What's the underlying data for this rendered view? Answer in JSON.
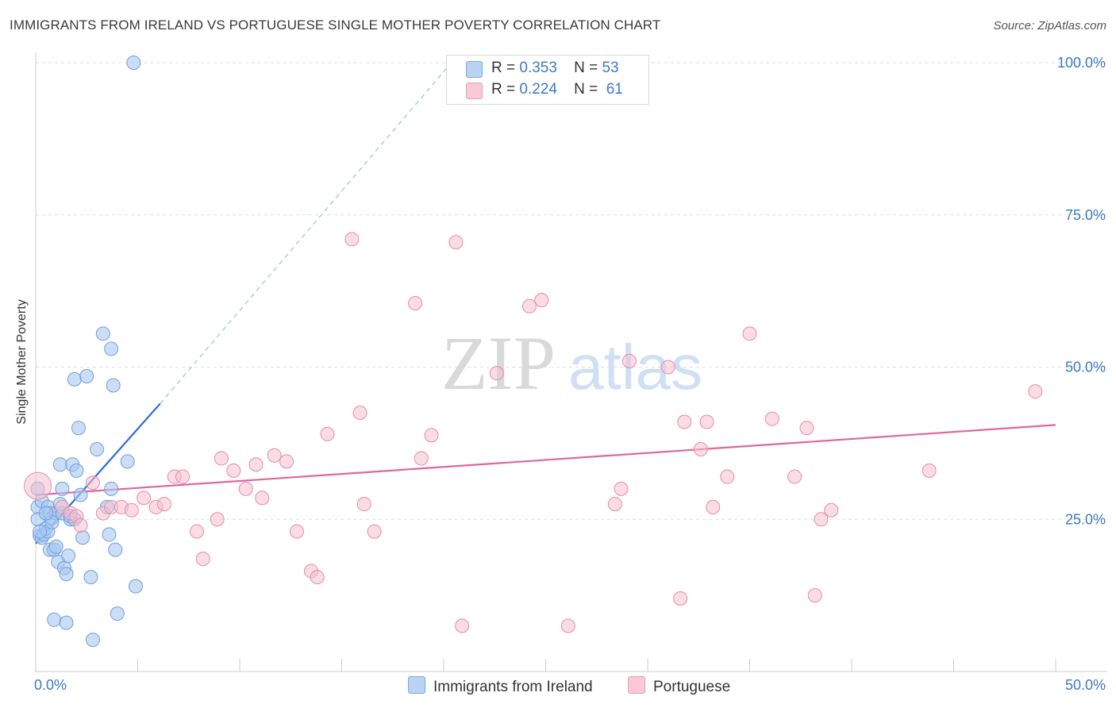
{
  "header": {
    "title": "IMMIGRANTS FROM IRELAND VS PORTUGUESE SINGLE MOTHER POVERTY CORRELATION CHART",
    "source": "Source: ZipAtlas.com"
  },
  "watermark": {
    "part1": "ZIP",
    "part2": "atlas"
  },
  "legend": {
    "series1": {
      "r_label": "R =",
      "r_value": "0.353",
      "n_label": "N =",
      "n_value": "53"
    },
    "series2": {
      "r_label": "R =",
      "r_value": "0.224",
      "n_label": "N =",
      "n_value": "61"
    }
  },
  "bottom_legend": {
    "series1": "Immigrants from Ireland",
    "series2": "Portuguese"
  },
  "colors": {
    "blue_fill": "#a9c8f0",
    "blue_stroke": "#6f9fdc",
    "blue_line": "#2b6fd6",
    "pink_fill": "#f6bfd0",
    "pink_stroke": "#e58ba8",
    "pink_line": "#e0679a",
    "axis_text": "#3b78c9",
    "grid": "#dddddd"
  },
  "chart_data": {
    "type": "scatter",
    "title": "IMMIGRANTS FROM IRELAND VS PORTUGUESE SINGLE MOTHER POVERTY CORRELATION CHART",
    "xlabel": "",
    "ylabel": "Single Mother Poverty",
    "xlim": [
      0,
      50
    ],
    "ylim": [
      0,
      105
    ],
    "x_tick_labels": [
      "0.0%",
      "50.0%"
    ],
    "y_tick_labels": [
      "25.0%",
      "50.0%",
      "75.0%",
      "100.0%"
    ],
    "y_ticks": [
      25,
      50,
      75,
      100
    ],
    "grid": true,
    "series": [
      {
        "name": "Immigrants from Ireland",
        "r": 0.353,
        "n": 53,
        "trend": {
          "x0": 0,
          "y0": 21.0,
          "x1": 6.1,
          "y1": 44.0,
          "dash_to_x": 20.5,
          "dash_to_y": 100.5
        },
        "points": [
          [
            0.1,
            27.0
          ],
          [
            0.1,
            30.0
          ],
          [
            0.1,
            25.0
          ],
          [
            0.2,
            22.3
          ],
          [
            0.3,
            28.0
          ],
          [
            0.3,
            22.0
          ],
          [
            0.4,
            22.5
          ],
          [
            0.5,
            23.5
          ],
          [
            0.6,
            23.0
          ],
          [
            0.6,
            27.0
          ],
          [
            0.7,
            20.0
          ],
          [
            0.7,
            26.0
          ],
          [
            0.8,
            25.2
          ],
          [
            0.9,
            8.5
          ],
          [
            0.9,
            20.0
          ],
          [
            1.0,
            26.0
          ],
          [
            1.1,
            18.0
          ],
          [
            1.2,
            34.0
          ],
          [
            1.3,
            26.0
          ],
          [
            1.3,
            30.0
          ],
          [
            1.4,
            17.0
          ],
          [
            1.5,
            8.0
          ],
          [
            1.5,
            16.0
          ],
          [
            1.6,
            19.0
          ],
          [
            1.7,
            25.0
          ],
          [
            1.8,
            34.0
          ],
          [
            1.9,
            48.0
          ],
          [
            2.0,
            33.0
          ],
          [
            2.1,
            40.0
          ],
          [
            2.2,
            29.0
          ],
          [
            2.3,
            22.0
          ],
          [
            2.5,
            48.5
          ],
          [
            2.7,
            15.5
          ],
          [
            2.8,
            5.2
          ],
          [
            3.0,
            36.5
          ],
          [
            3.3,
            55.5
          ],
          [
            3.5,
            27.0
          ],
          [
            3.6,
            22.5
          ],
          [
            3.7,
            53.0
          ],
          [
            3.7,
            30.0
          ],
          [
            3.8,
            47.0
          ],
          [
            3.9,
            20.0
          ],
          [
            4.0,
            9.5
          ],
          [
            4.5,
            34.5
          ],
          [
            4.9,
            14.0
          ],
          [
            4.8,
            100.0
          ],
          [
            0.2,
            23.0
          ],
          [
            0.8,
            24.5
          ],
          [
            1.0,
            20.5
          ],
          [
            1.2,
            27.5
          ],
          [
            1.7,
            25.5
          ],
          [
            1.9,
            25.0
          ],
          [
            0.5,
            26.0
          ]
        ]
      },
      {
        "name": "Portuguese",
        "r": 0.224,
        "n": 61,
        "trend": {
          "x0": 0,
          "y0": 29.0,
          "x1": 50,
          "y1": 40.5
        },
        "points": [
          [
            0.1,
            30.5
          ],
          [
            1.3,
            27.0
          ],
          [
            1.7,
            26.0
          ],
          [
            2.0,
            25.5
          ],
          [
            2.2,
            24.0
          ],
          [
            2.8,
            31.0
          ],
          [
            3.3,
            26.0
          ],
          [
            3.7,
            27.0
          ],
          [
            4.2,
            27.0
          ],
          [
            4.7,
            26.5
          ],
          [
            5.3,
            28.5
          ],
          [
            5.9,
            27.0
          ],
          [
            6.3,
            27.5
          ],
          [
            6.8,
            32.0
          ],
          [
            7.2,
            32.0
          ],
          [
            7.9,
            23.0
          ],
          [
            8.2,
            18.5
          ],
          [
            8.9,
            25.0
          ],
          [
            9.1,
            35.0
          ],
          [
            9.7,
            33.0
          ],
          [
            10.3,
            30.0
          ],
          [
            10.8,
            34.0
          ],
          [
            11.1,
            28.5
          ],
          [
            11.7,
            35.5
          ],
          [
            12.3,
            34.5
          ],
          [
            12.8,
            23.0
          ],
          [
            13.5,
            16.5
          ],
          [
            13.8,
            15.5
          ],
          [
            14.3,
            39.0
          ],
          [
            15.5,
            71.0
          ],
          [
            15.9,
            42.5
          ],
          [
            16.1,
            27.5
          ],
          [
            16.6,
            23.0
          ],
          [
            18.6,
            60.5
          ],
          [
            18.9,
            35.0
          ],
          [
            19.4,
            38.8
          ],
          [
            20.6,
            70.5
          ],
          [
            20.9,
            7.5
          ],
          [
            22.6,
            49.0
          ],
          [
            24.2,
            60.0
          ],
          [
            24.8,
            61.0
          ],
          [
            26.1,
            7.5
          ],
          [
            28.4,
            27.5
          ],
          [
            28.7,
            30.0
          ],
          [
            29.1,
            51.0
          ],
          [
            31.0,
            50.0
          ],
          [
            31.6,
            12.0
          ],
          [
            31.8,
            41.0
          ],
          [
            32.6,
            36.5
          ],
          [
            32.9,
            41.0
          ],
          [
            33.2,
            27.0
          ],
          [
            33.9,
            32.0
          ],
          [
            35.0,
            55.5
          ],
          [
            36.1,
            41.5
          ],
          [
            37.2,
            32.0
          ],
          [
            37.8,
            40.0
          ],
          [
            38.2,
            12.5
          ],
          [
            38.5,
            25.0
          ],
          [
            39.0,
            26.5
          ],
          [
            43.8,
            33.0
          ],
          [
            49.0,
            46.0
          ]
        ]
      }
    ]
  }
}
